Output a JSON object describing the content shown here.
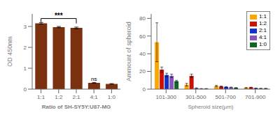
{
  "chart_data": [
    {
      "type": "bar",
      "categories": [
        "1:1",
        "1:2",
        "2:1",
        "4:1",
        "1:0"
      ],
      "values": [
        3.15,
        2.97,
        2.93,
        0.3,
        0.25
      ],
      "errors": [
        0.04,
        0.03,
        0.04,
        0.02,
        0.015
      ],
      "color": "#7B3010",
      "ylabel": "OD 450nm",
      "xlabel": "Ratio of SH-SY5Y:U87-MG",
      "ylim": [
        0,
        3.6
      ],
      "yticks": [
        0,
        1,
        2,
        3
      ],
      "grid": false,
      "annotations": [
        {
          "text": "***",
          "x": [
            "1:1",
            "2:1"
          ],
          "y": 3.38
        },
        {
          "text": "ns",
          "x": "4:1",
          "y": 0.36
        }
      ]
    },
    {
      "type": "bar",
      "categories": [
        "101-300",
        "301-500",
        "501-700",
        "701-900"
      ],
      "series": [
        {
          "name": "1:1",
          "color": "#FFA500",
          "values": [
            53,
            5,
            3.5,
            1.5
          ],
          "errors": [
            22,
            1.5,
            0.8,
            0.3
          ]
        },
        {
          "name": "1:2",
          "color": "#CC1100",
          "values": [
            22,
            15,
            3.0,
            2.0
          ],
          "errors": [
            3,
            2,
            0.5,
            0.2
          ]
        },
        {
          "name": "2:1",
          "color": "#1133CC",
          "values": [
            16,
            1,
            2.5,
            1.0
          ],
          "errors": [
            2,
            0.5,
            0.4,
            0.2
          ]
        },
        {
          "name": "4:1",
          "color": "#8855BB",
          "values": [
            15,
            0.5,
            2.0,
            0.8
          ],
          "errors": [
            2,
            0.2,
            0.3,
            0.15
          ]
        },
        {
          "name": "1:0",
          "color": "#116622",
          "values": [
            9,
            0.5,
            1.5,
            0.8
          ],
          "errors": [
            1,
            0.2,
            0.2,
            0.1
          ]
        }
      ],
      "ylabel": "Ammount of spheroid",
      "xlabel": "Spheroid size(μm)",
      "ylim": [
        0,
        85
      ],
      "yticks": [
        0,
        20,
        40,
        60,
        80
      ],
      "grid": false,
      "legend": "upper right"
    }
  ]
}
